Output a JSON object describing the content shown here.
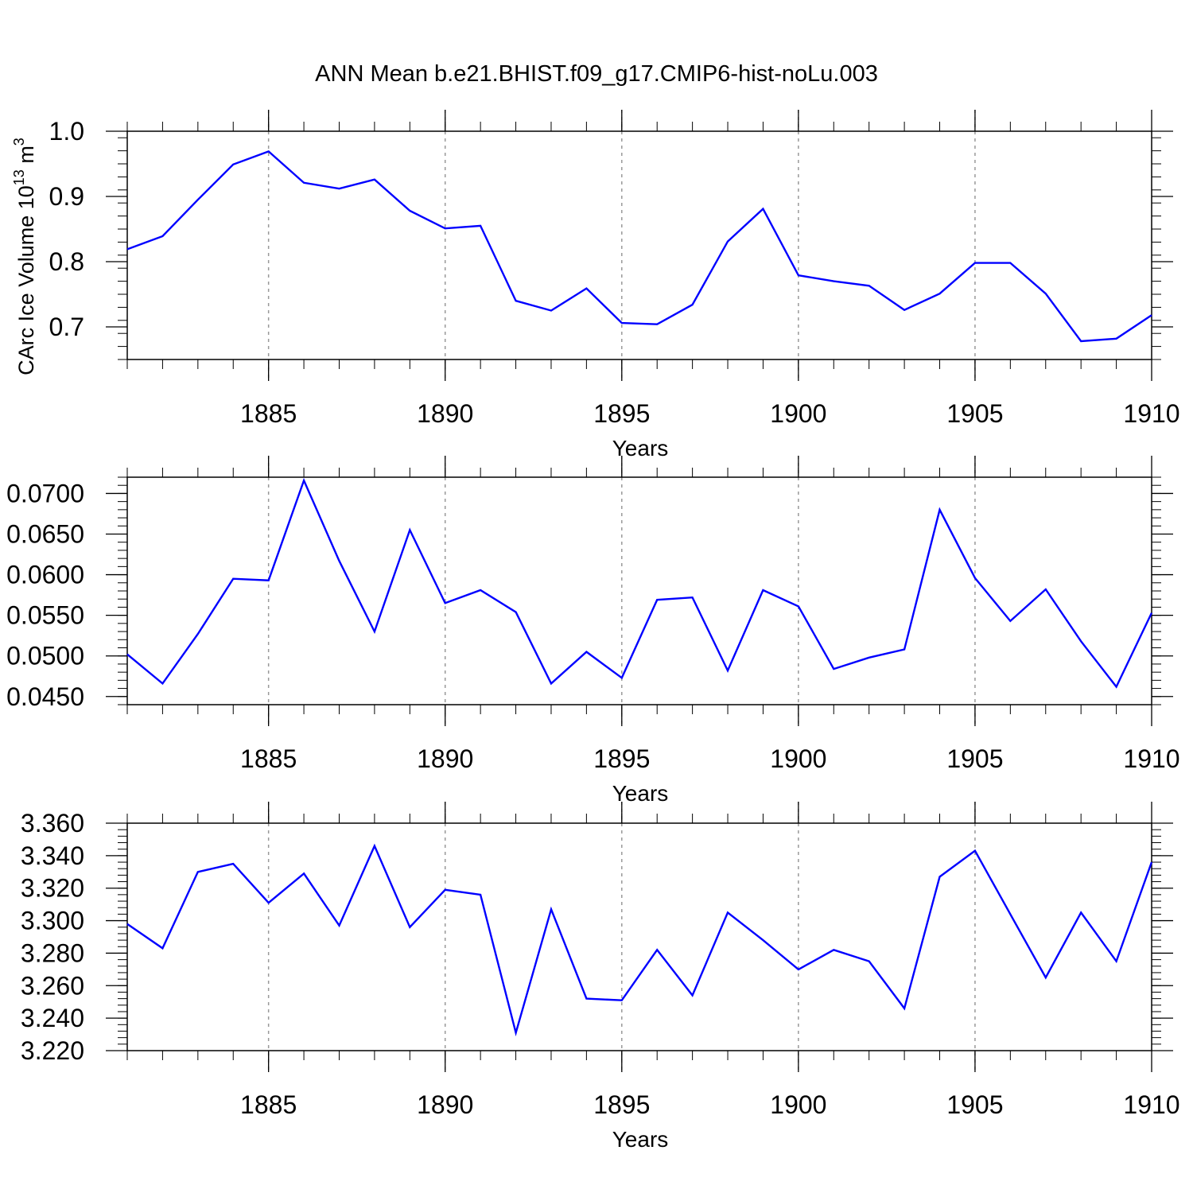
{
  "figure": {
    "title": "ANN Mean b.e21.BHIST.f09_g17.CMIP6-hist-noLu.003"
  },
  "chart_data": [
    {
      "type": "line",
      "title": "",
      "xlabel": "Years",
      "ylabel": "CArc Ice Volume 10",
      "ylabel_sup1": "13",
      "ylabel_mid": " m",
      "ylabel_sup2": "3",
      "xlim": [
        1881,
        1910
      ],
      "ylim": [
        0.65,
        1.0
      ],
      "x_ticks": [
        1885,
        1890,
        1895,
        1900,
        1905,
        1910
      ],
      "y_ticks": [
        "0.7",
        "0.8",
        "0.9",
        "1.0"
      ],
      "y_tick_values": [
        0.7,
        0.8,
        0.9,
        1.0
      ],
      "grid": "vertical-dashed",
      "line_color": "#0000ff",
      "x": [
        1881,
        1882,
        1883,
        1884,
        1885,
        1886,
        1887,
        1888,
        1889,
        1890,
        1891,
        1892,
        1893,
        1894,
        1895,
        1896,
        1897,
        1898,
        1899,
        1900,
        1901,
        1902,
        1903,
        1904,
        1905,
        1906,
        1907,
        1908,
        1909,
        1910
      ],
      "values": [
        0.819,
        0.839,
        0.895,
        0.949,
        0.969,
        0.921,
        0.912,
        0.926,
        0.878,
        0.851,
        0.855,
        0.74,
        0.725,
        0.759,
        0.706,
        0.704,
        0.734,
        0.831,
        0.881,
        0.779,
        0.77,
        0.763,
        0.726,
        0.751,
        0.798,
        0.798,
        0.751,
        0.678,
        0.682,
        0.718
      ]
    },
    {
      "type": "line",
      "title": "",
      "xlabel": "Years",
      "ylabel": "",
      "xlim": [
        1881,
        1910
      ],
      "ylim": [
        0.044,
        0.072
      ],
      "x_ticks": [
        1885,
        1890,
        1895,
        1900,
        1905,
        1910
      ],
      "y_ticks": [
        "0.0450",
        "0.0500",
        "0.0550",
        "0.0600",
        "0.0650",
        "0.0700"
      ],
      "y_tick_values": [
        0.045,
        0.05,
        0.055,
        0.06,
        0.065,
        0.07
      ],
      "grid": "vertical-dashed",
      "line_color": "#0000ff",
      "x": [
        1881,
        1882,
        1883,
        1884,
        1885,
        1886,
        1887,
        1888,
        1889,
        1890,
        1891,
        1892,
        1893,
        1894,
        1895,
        1896,
        1897,
        1898,
        1899,
        1900,
        1901,
        1902,
        1903,
        1904,
        1905,
        1906,
        1907,
        1908,
        1909,
        1910
      ],
      "values": [
        0.0502,
        0.0466,
        0.0527,
        0.0595,
        0.0593,
        0.0716,
        0.0617,
        0.053,
        0.0655,
        0.0565,
        0.0581,
        0.0554,
        0.0466,
        0.0505,
        0.0473,
        0.0569,
        0.0572,
        0.0482,
        0.0581,
        0.0561,
        0.0484,
        0.0498,
        0.0508,
        0.068,
        0.0596,
        0.0543,
        0.0582,
        0.0518,
        0.0462,
        0.0553
      ]
    },
    {
      "type": "line",
      "title": "",
      "xlabel": "Years",
      "ylabel": "",
      "xlim": [
        1881,
        1910
      ],
      "ylim": [
        3.22,
        3.36
      ],
      "x_ticks": [
        1885,
        1890,
        1895,
        1900,
        1905,
        1910
      ],
      "y_ticks": [
        "3.220",
        "3.240",
        "3.260",
        "3.280",
        "3.300",
        "3.320",
        "3.340",
        "3.360"
      ],
      "y_tick_values": [
        3.22,
        3.24,
        3.26,
        3.28,
        3.3,
        3.32,
        3.34,
        3.36
      ],
      "grid": "vertical-dashed",
      "line_color": "#0000ff",
      "x": [
        1881,
        1882,
        1883,
        1884,
        1885,
        1886,
        1887,
        1888,
        1889,
        1890,
        1891,
        1892,
        1893,
        1894,
        1895,
        1896,
        1897,
        1898,
        1899,
        1900,
        1901,
        1902,
        1903,
        1904,
        1905,
        1906,
        1907,
        1908,
        1909,
        1910
      ],
      "values": [
        3.298,
        3.283,
        3.33,
        3.335,
        3.311,
        3.329,
        3.297,
        3.346,
        3.296,
        3.319,
        3.316,
        3.231,
        3.307,
        3.252,
        3.251,
        3.282,
        3.254,
        3.305,
        3.288,
        3.27,
        3.282,
        3.275,
        3.246,
        3.327,
        3.343,
        3.304,
        3.265,
        3.305,
        3.275,
        3.336
      ]
    }
  ]
}
